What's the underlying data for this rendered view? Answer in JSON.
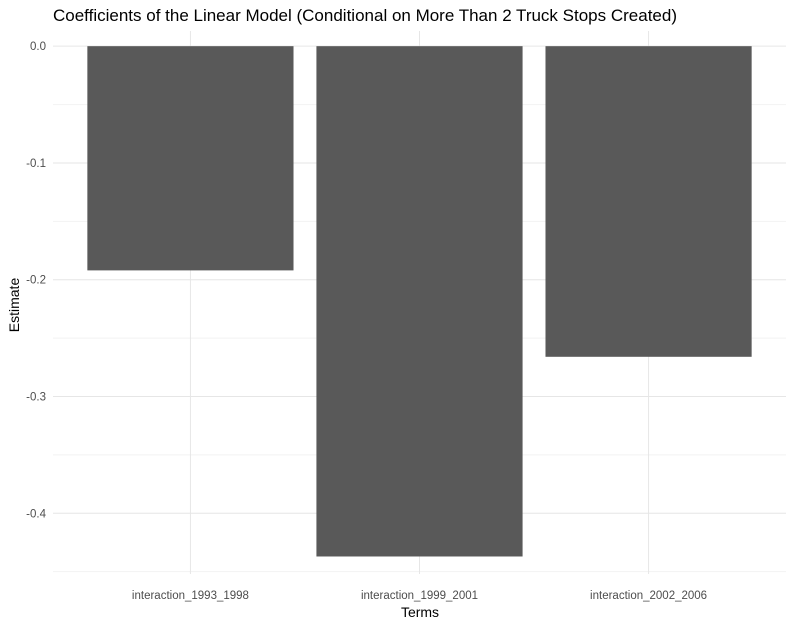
{
  "chart_data": {
    "type": "bar",
    "title": "Coefficients of the Linear Model (Conditional on More Than 2 Truck Stops Created)",
    "xlabel": "Terms",
    "ylabel": "Estimate",
    "categories": [
      "interaction_1993_1998",
      "interaction_1999_2001",
      "interaction_2002_2006"
    ],
    "values": [
      -0.192,
      -0.437,
      -0.266
    ],
    "ylim": [
      -0.452,
      0.013
    ],
    "yticks": [
      0.0,
      -0.1,
      -0.2,
      -0.3,
      -0.4
    ],
    "ytick_labels": [
      "0.0",
      "-0.1",
      "-0.2",
      "-0.3",
      "-0.4"
    ],
    "grid": true,
    "bar_color": "#595959",
    "grid_major_color": "#e6e6e6",
    "grid_minor_color": "#f2f2f2"
  }
}
